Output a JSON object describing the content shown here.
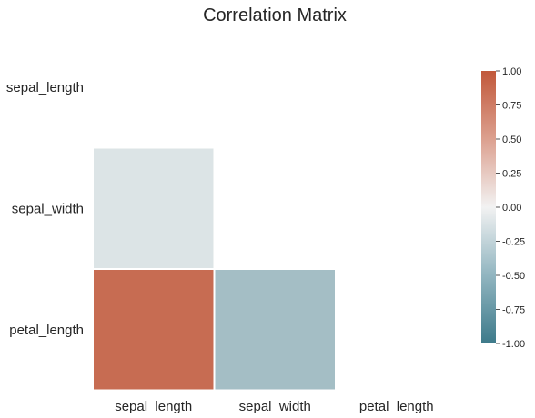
{
  "chart_data": {
    "type": "heatmap",
    "title": "Correlation Matrix",
    "variables": [
      "sepal_length",
      "sepal_width",
      "petal_length"
    ],
    "mask": "upper-triangle-and-diagonal",
    "cells": [
      {
        "row": 1,
        "col": 0,
        "value": -0.12
      },
      {
        "row": 2,
        "col": 0,
        "value": 0.87
      },
      {
        "row": 2,
        "col": 1,
        "value": -0.43
      }
    ],
    "colormap": {
      "negative_end": "#3d7a8a",
      "center": "#f2f2f2",
      "positive_end": "#c1583a",
      "vmin": -1.0,
      "vmax": 1.0
    },
    "colorbar": {
      "ticks": [
        "1.00",
        "0.75",
        "0.50",
        "0.25",
        "0.00",
        "-0.25",
        "-0.50",
        "-0.75",
        "-1.00"
      ],
      "tick_values": [
        1.0,
        0.75,
        0.5,
        0.25,
        0.0,
        -0.25,
        -0.5,
        -0.75,
        -1.0
      ],
      "position": "right"
    },
    "annotations": false,
    "grid": false
  }
}
